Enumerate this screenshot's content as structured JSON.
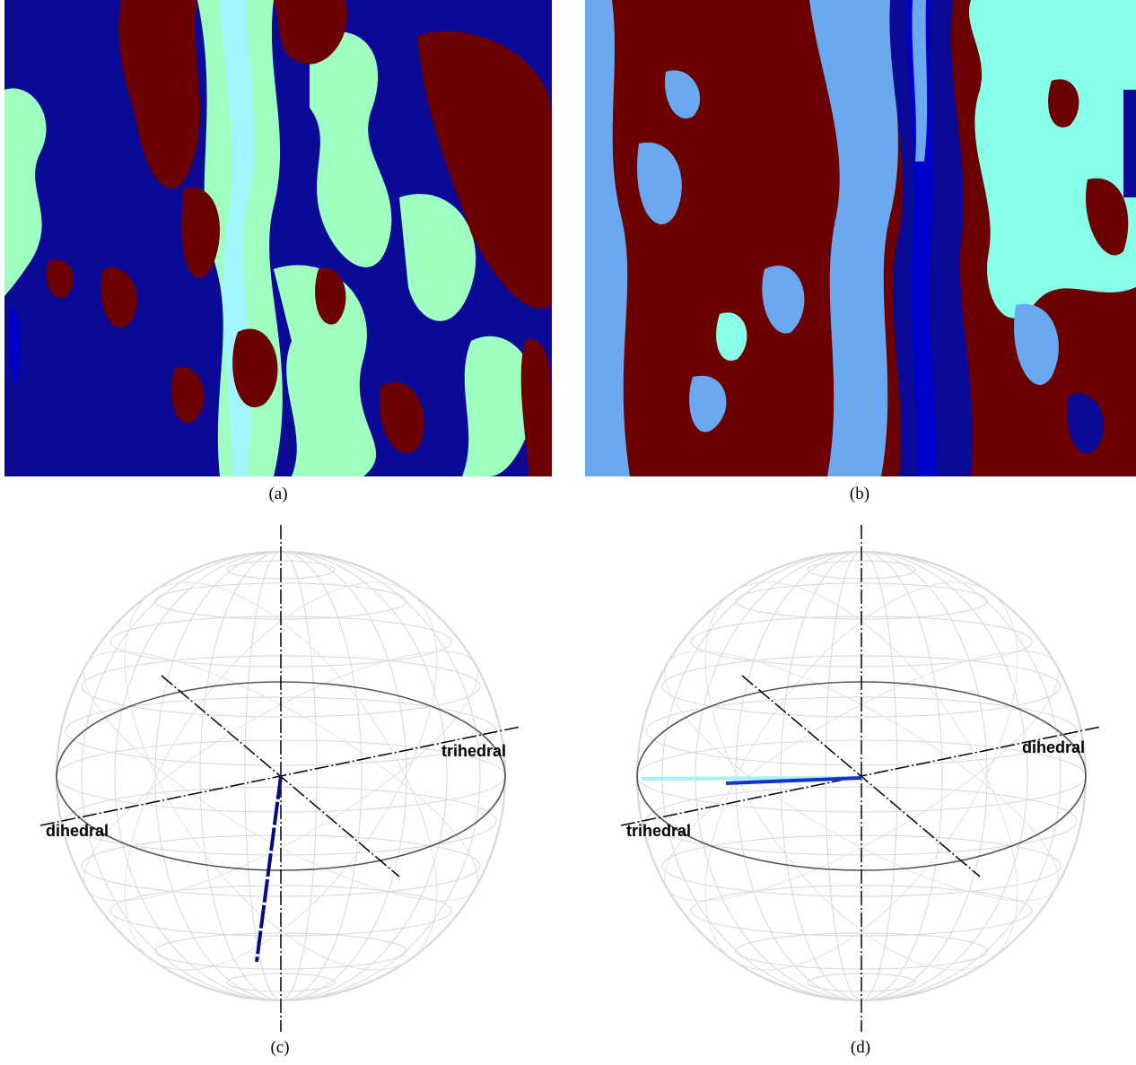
{
  "figure": {
    "panels": [
      {
        "id": "a",
        "caption": "(a)"
      },
      {
        "id": "b",
        "caption": "(b)"
      },
      {
        "id": "c",
        "caption": "(c)",
        "axis_labels": {
          "right": "trihedral",
          "left": "dihedral"
        }
      },
      {
        "id": "d",
        "caption": "(d)",
        "axis_labels": {
          "right": "dihedral",
          "left": "trihedral"
        }
      }
    ],
    "colors": {
      "dark_red": "#6b0000",
      "navy": "#0a0a96",
      "blue": "#0000cc",
      "cyan": "#88ffe8",
      "light_cyan": "#a0f5ff",
      "mint": "#9effc0",
      "sky_blue": "#6aa9f0",
      "grid_gray": "#c8c8c8",
      "vector_navy": "#0a0a80",
      "vector_blue": "#1133cc",
      "vector_cyan": "#a8f0f5"
    }
  }
}
